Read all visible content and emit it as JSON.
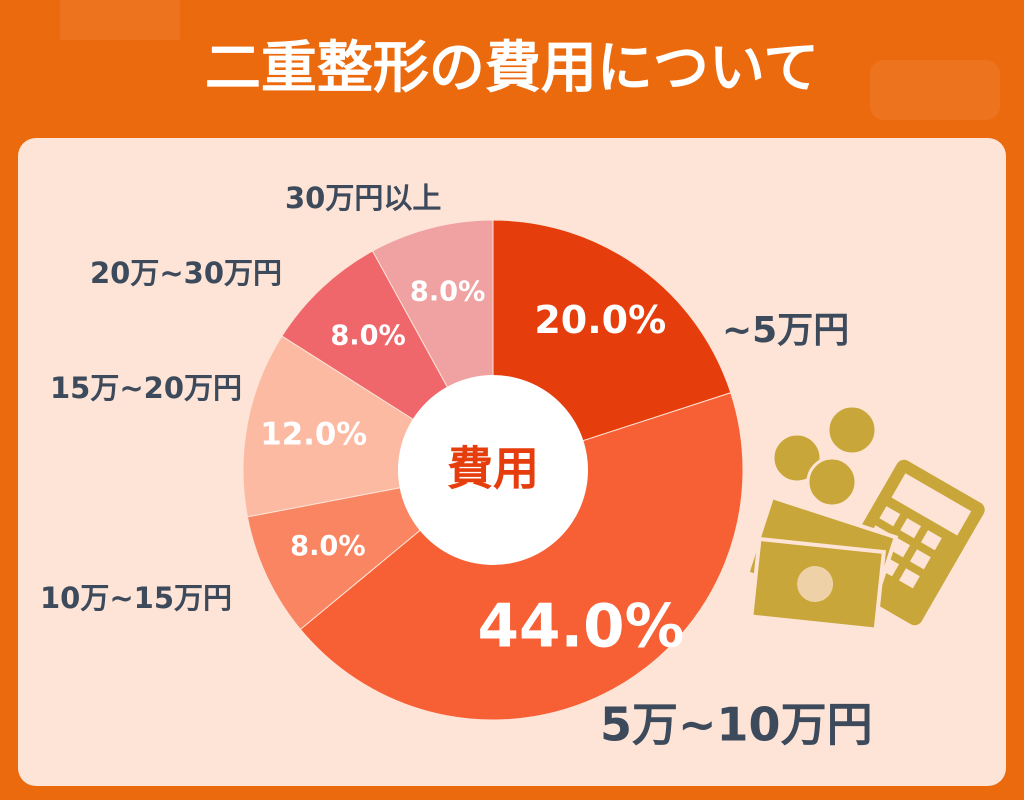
{
  "chart_data": {
    "type": "donut",
    "title": "二重整形の費用について",
    "center_label": "費用",
    "categories": [
      "~5万円",
      "5万~10万円",
      "10万~15万円",
      "15万~20万円",
      "20万~30万円",
      "30万円以上"
    ],
    "values": [
      20.0,
      44.0,
      8.0,
      12.0,
      8.0,
      8.0
    ],
    "value_labels": [
      "20.0%",
      "44.0%",
      "8.0%",
      "12.0%",
      "8.0%",
      "8.0%"
    ],
    "colors": [
      "#e63d0d",
      "#f75f34",
      "#f98563",
      "#fcbaa3",
      "#f0676b",
      "#f0a2a2"
    ]
  }
}
